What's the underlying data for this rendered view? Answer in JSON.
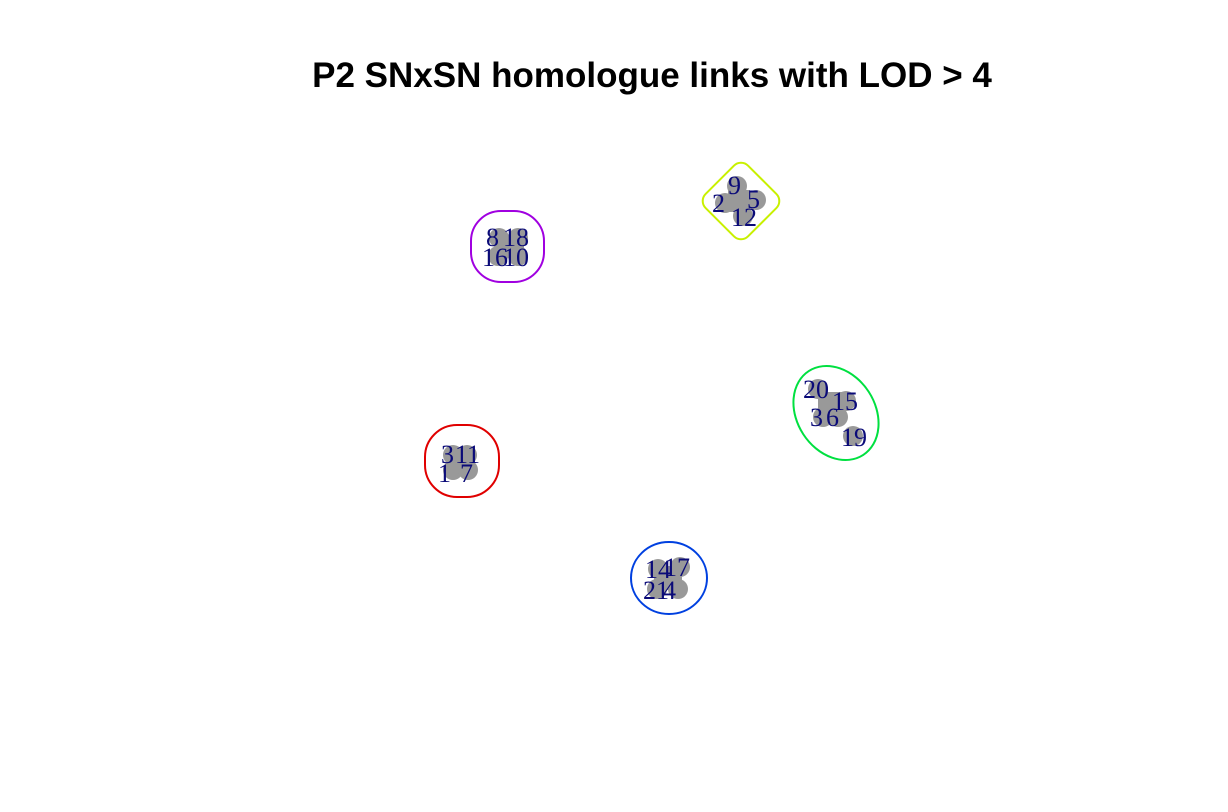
{
  "title": "P2 SNxSN homologue links with LOD > 4",
  "groups": [
    {
      "color": "#e00000",
      "nodes": [
        "3",
        "11",
        "1",
        "7"
      ]
    },
    {
      "color": "#a000e0",
      "nodes": [
        "8",
        "18",
        "16",
        "10"
      ]
    },
    {
      "color": "#c8f000",
      "nodes": [
        "9",
        "2",
        "5",
        "12"
      ]
    },
    {
      "color": "#00e040",
      "nodes": [
        "20",
        "15",
        "3",
        "6",
        "19"
      ]
    },
    {
      "color": "#0040e0",
      "nodes": [
        "14",
        "17",
        "21",
        "4"
      ]
    }
  ]
}
